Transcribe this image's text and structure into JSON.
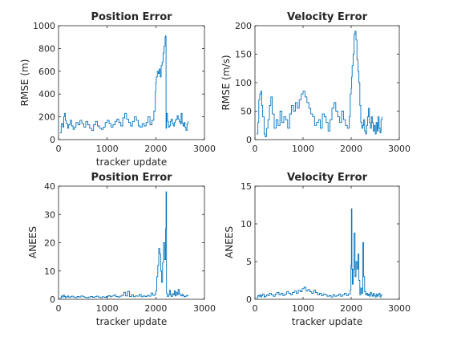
{
  "figure": {
    "line_color": "#0072BD"
  },
  "chart_data": [
    {
      "type": "line",
      "title": "Position Error",
      "xlabel": "tracker update",
      "ylabel": "RMSE (m)",
      "xlim": [
        0,
        3000
      ],
      "ylim": [
        0,
        1000
      ],
      "xticks": [
        0,
        1000,
        2000,
        3000
      ],
      "yticks": [
        0,
        200,
        400,
        600,
        800,
        1000
      ],
      "grid": false,
      "series": [
        {
          "x": [
            30,
            55,
            60,
            90,
            105,
            120,
            140,
            160,
            190,
            210,
            240,
            270,
            300,
            330,
            360,
            400,
            440,
            480,
            520,
            560,
            600,
            640,
            680,
            720,
            760,
            800,
            840,
            880,
            920,
            960,
            1000,
            1040,
            1080,
            1120,
            1160,
            1200,
            1240,
            1280,
            1320,
            1360,
            1400,
            1440,
            1480,
            1520,
            1560,
            1600,
            1640,
            1680,
            1720,
            1760,
            1800,
            1840,
            1880,
            1920,
            1960,
            1990,
            2000,
            2010,
            2030,
            2050,
            2070,
            2090,
            2110,
            2130,
            2150,
            2170,
            2190,
            2200,
            2210,
            2220,
            2240,
            2260,
            2280,
            2300,
            2320,
            2340,
            2360,
            2380,
            2400,
            2420,
            2440,
            2460,
            2480,
            2500,
            2520,
            2540,
            2560,
            2580,
            2600,
            2620,
            2640,
            2660
          ],
          "y": [
            60,
            120,
            140,
            110,
            200,
            230,
            170,
            140,
            100,
            130,
            170,
            120,
            90,
            110,
            150,
            130,
            170,
            140,
            110,
            160,
            130,
            100,
            80,
            130,
            160,
            120,
            100,
            90,
            110,
            150,
            170,
            140,
            110,
            130,
            160,
            180,
            150,
            120,
            190,
            230,
            180,
            150,
            120,
            160,
            200,
            170,
            120,
            110,
            140,
            120,
            150,
            200,
            130,
            170,
            250,
            420,
            500,
            550,
            600,
            580,
            620,
            550,
            650,
            680,
            760,
            820,
            900,
            910,
            100,
            230,
            160,
            110,
            120,
            160,
            180,
            140,
            120,
            150,
            170,
            180,
            210,
            180,
            160,
            140,
            230,
            140,
            120,
            150,
            110,
            80,
            140,
            160
          ]
        }
      ]
    },
    {
      "type": "line",
      "title": "Velocity Error",
      "xlabel": "",
      "ylabel": "RMSE (m/s)",
      "xlim": [
        0,
        3000
      ],
      "ylim": [
        0,
        200
      ],
      "xticks": [
        0,
        1000,
        2000,
        3000
      ],
      "yticks": [
        0,
        50,
        100,
        150,
        200
      ],
      "grid": false,
      "series": [
        {
          "x": [
            30,
            60,
            80,
            100,
            120,
            140,
            160,
            190,
            210,
            240,
            270,
            300,
            330,
            360,
            400,
            440,
            480,
            520,
            560,
            600,
            640,
            680,
            720,
            760,
            800,
            840,
            880,
            920,
            960,
            1000,
            1040,
            1080,
            1120,
            1160,
            1200,
            1240,
            1280,
            1320,
            1360,
            1400,
            1440,
            1480,
            1520,
            1560,
            1600,
            1640,
            1680,
            1720,
            1760,
            1800,
            1840,
            1880,
            1920,
            1960,
            1980,
            2000,
            2010,
            2020,
            2040,
            2060,
            2080,
            2100,
            2120,
            2140,
            2160,
            2180,
            2200,
            2220,
            2240,
            2260,
            2280,
            2300,
            2320,
            2340,
            2360,
            2380,
            2400,
            2420,
            2440,
            2460,
            2480,
            2500,
            2520,
            2540,
            2560,
            2580,
            2600,
            2620,
            2640
          ],
          "y": [
            10,
            30,
            70,
            80,
            85,
            60,
            40,
            10,
            5,
            20,
            35,
            60,
            75,
            45,
            20,
            35,
            25,
            50,
            30,
            40,
            35,
            20,
            45,
            60,
            50,
            65,
            55,
            70,
            80,
            85,
            75,
            65,
            55,
            45,
            40,
            25,
            30,
            35,
            20,
            45,
            40,
            30,
            15,
            35,
            55,
            65,
            50,
            40,
            30,
            50,
            35,
            25,
            20,
            40,
            80,
            90,
            110,
            130,
            150,
            185,
            190,
            175,
            140,
            120,
            100,
            60,
            30,
            20,
            25,
            35,
            15,
            10,
            25,
            40,
            55,
            30,
            20,
            40,
            30,
            15,
            25,
            10,
            30,
            15,
            40,
            20,
            12,
            35,
            40
          ]
        }
      ]
    },
    {
      "type": "line",
      "title": "Position Error",
      "xlabel": "tracker update",
      "ylabel": "ANEES",
      "xlim": [
        0,
        3000
      ],
      "ylim": [
        0,
        40
      ],
      "xticks": [
        0,
        1000,
        2000,
        3000
      ],
      "yticks": [
        0,
        10,
        20,
        30,
        40
      ],
      "grid": false,
      "series": [
        {
          "x": [
            30,
            60,
            80,
            100,
            120,
            140,
            160,
            190,
            210,
            240,
            270,
            300,
            340,
            380,
            420,
            460,
            500,
            540,
            580,
            620,
            660,
            700,
            740,
            780,
            820,
            860,
            900,
            940,
            980,
            1020,
            1060,
            1100,
            1140,
            1180,
            1220,
            1260,
            1300,
            1340,
            1380,
            1420,
            1460,
            1500,
            1540,
            1580,
            1620,
            1660,
            1700,
            1740,
            1780,
            1820,
            1860,
            1900,
            1940,
            1980,
            2000,
            2020,
            2040,
            2060,
            2080,
            2100,
            2120,
            2140,
            2160,
            2180,
            2200,
            2210,
            2220,
            2240,
            2260,
            2280,
            2300,
            2320,
            2340,
            2360,
            2380,
            2400,
            2420,
            2440,
            2460,
            2480,
            2500,
            2520,
            2540,
            2560,
            2580,
            2600,
            2620,
            2640,
            2660
          ],
          "y": [
            0.5,
            1.2,
            0.8,
            1.5,
            1.0,
            0.6,
            0.9,
            1.2,
            0.7,
            0.9,
            1.1,
            0.8,
            0.6,
            1.0,
            0.8,
            1.2,
            0.9,
            0.7,
            0.6,
            0.8,
            1.0,
            0.7,
            0.9,
            1.1,
            0.8,
            0.6,
            0.9,
            0.7,
            1.0,
            1.3,
            0.9,
            1.2,
            1.5,
            1.0,
            0.8,
            1.1,
            1.4,
            2.5,
            1.2,
            2.8,
            1.0,
            1.6,
            0.9,
            1.2,
            1.1,
            1.7,
            0.9,
            1.2,
            1.0,
            1.4,
            1.1,
            2.2,
            1.4,
            1.8,
            3.0,
            8.0,
            12.0,
            18.0,
            16.0,
            10.0,
            6.0,
            13.0,
            20.0,
            14.0,
            25.0,
            38.0,
            2.0,
            1.0,
            1.5,
            3.2,
            1.5,
            1.0,
            2.0,
            1.6,
            3.0,
            1.2,
            2.5,
            1.6,
            3.5,
            2.0,
            1.4,
            1.2,
            1.8,
            1.3,
            0.9,
            1.0,
            1.2,
            1.4,
            1.1
          ]
        }
      ]
    },
    {
      "type": "line",
      "title": "Velocity Error",
      "xlabel": "tracker update",
      "ylabel": "ANEES",
      "xlim": [
        0,
        3000
      ],
      "ylim": [
        0,
        15
      ],
      "xticks": [
        0,
        1000,
        2000,
        3000
      ],
      "yticks": [
        0,
        5,
        10,
        15
      ],
      "grid": false,
      "series": [
        {
          "x": [
            30,
            60,
            80,
            100,
            120,
            140,
            160,
            190,
            210,
            240,
            270,
            300,
            340,
            380,
            420,
            460,
            500,
            540,
            580,
            620,
            660,
            700,
            740,
            780,
            820,
            860,
            900,
            940,
            980,
            1020,
            1060,
            1100,
            1140,
            1180,
            1220,
            1260,
            1300,
            1340,
            1380,
            1420,
            1460,
            1500,
            1540,
            1580,
            1620,
            1660,
            1700,
            1740,
            1780,
            1820,
            1860,
            1900,
            1940,
            1980,
            1995,
            2005,
            2015,
            2025,
            2040,
            2060,
            2080,
            2100,
            2120,
            2140,
            2160,
            2180,
            2200,
            2220,
            2240,
            2260,
            2280,
            2300,
            2320,
            2340,
            2360,
            2380,
            2400,
            2420,
            2440,
            2460,
            2480,
            2500,
            2520,
            2540,
            2560,
            2580,
            2600,
            2620,
            2640
          ],
          "y": [
            0.2,
            0.5,
            0.4,
            0.6,
            0.3,
            0.5,
            0.7,
            0.3,
            0.4,
            0.6,
            0.5,
            0.8,
            0.6,
            0.4,
            0.7,
            0.9,
            0.6,
            0.8,
            0.5,
            0.7,
            1.0,
            0.8,
            0.6,
            0.9,
            1.1,
            0.8,
            1.2,
            1.0,
            1.4,
            1.6,
            1.1,
            1.3,
            1.0,
            0.8,
            1.2,
            0.9,
            0.6,
            0.8,
            0.5,
            0.7,
            0.6,
            0.4,
            0.5,
            0.3,
            0.6,
            0.4,
            0.5,
            0.7,
            0.4,
            0.6,
            0.8,
            0.5,
            0.7,
            1.2,
            4.5,
            12.0,
            4.0,
            2.0,
            4.0,
            8.8,
            3.0,
            5.0,
            4.0,
            6.0,
            2.5,
            0.6,
            1.5,
            0.8,
            7.5,
            3.0,
            1.0,
            0.6,
            0.8,
            0.5,
            0.7,
            0.4,
            0.9,
            0.6,
            0.4,
            0.8,
            0.5,
            0.3,
            0.7,
            0.4,
            0.6,
            0.8,
            0.3,
            0.6,
            0.5
          ]
        }
      ]
    }
  ]
}
